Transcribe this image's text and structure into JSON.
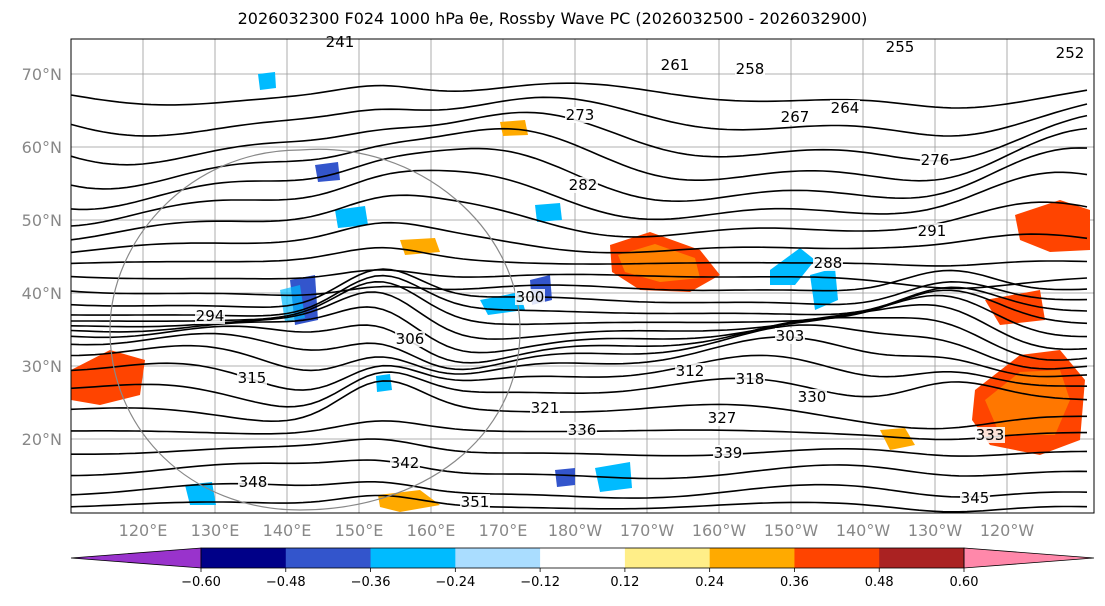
{
  "title": "2026032300 F024 1000 hPa θe, Rossby Wave PC (2026032500 - 2026032900)",
  "map": {
    "lat_labels": [
      "70°N",
      "60°N",
      "50°N",
      "40°N",
      "30°N",
      "20°N"
    ],
    "lon_labels": [
      "120°E",
      "130°E",
      "140°E",
      "150°E",
      "160°E",
      "170°E",
      "180°W",
      "170°W",
      "160°W",
      "150°W",
      "140°W",
      "130°W",
      "120°W"
    ],
    "contour_labels": [
      "255",
      "258",
      "264",
      "267",
      "273",
      "276",
      "282",
      "288",
      "291",
      "294",
      "300",
      "303",
      "306",
      "312",
      "315",
      "318",
      "321",
      "327",
      "330",
      "333",
      "336",
      "339",
      "342",
      "345",
      "348",
      "351",
      "241",
      "261",
      "252"
    ]
  },
  "colorbar": {
    "ticks": [
      "−0.60",
      "−0.48",
      "−0.36",
      "−0.24",
      "−0.12",
      "0.12",
      "0.24",
      "0.36",
      "0.48",
      "0.60"
    ],
    "colors": [
      "#9933cc",
      "#000088",
      "#3355cc",
      "#00bbff",
      "#aaddff",
      "#ffffff",
      "#ffee88",
      "#ffaa00",
      "#ff4400",
      "#aa2222",
      "#ff88aa"
    ]
  }
}
